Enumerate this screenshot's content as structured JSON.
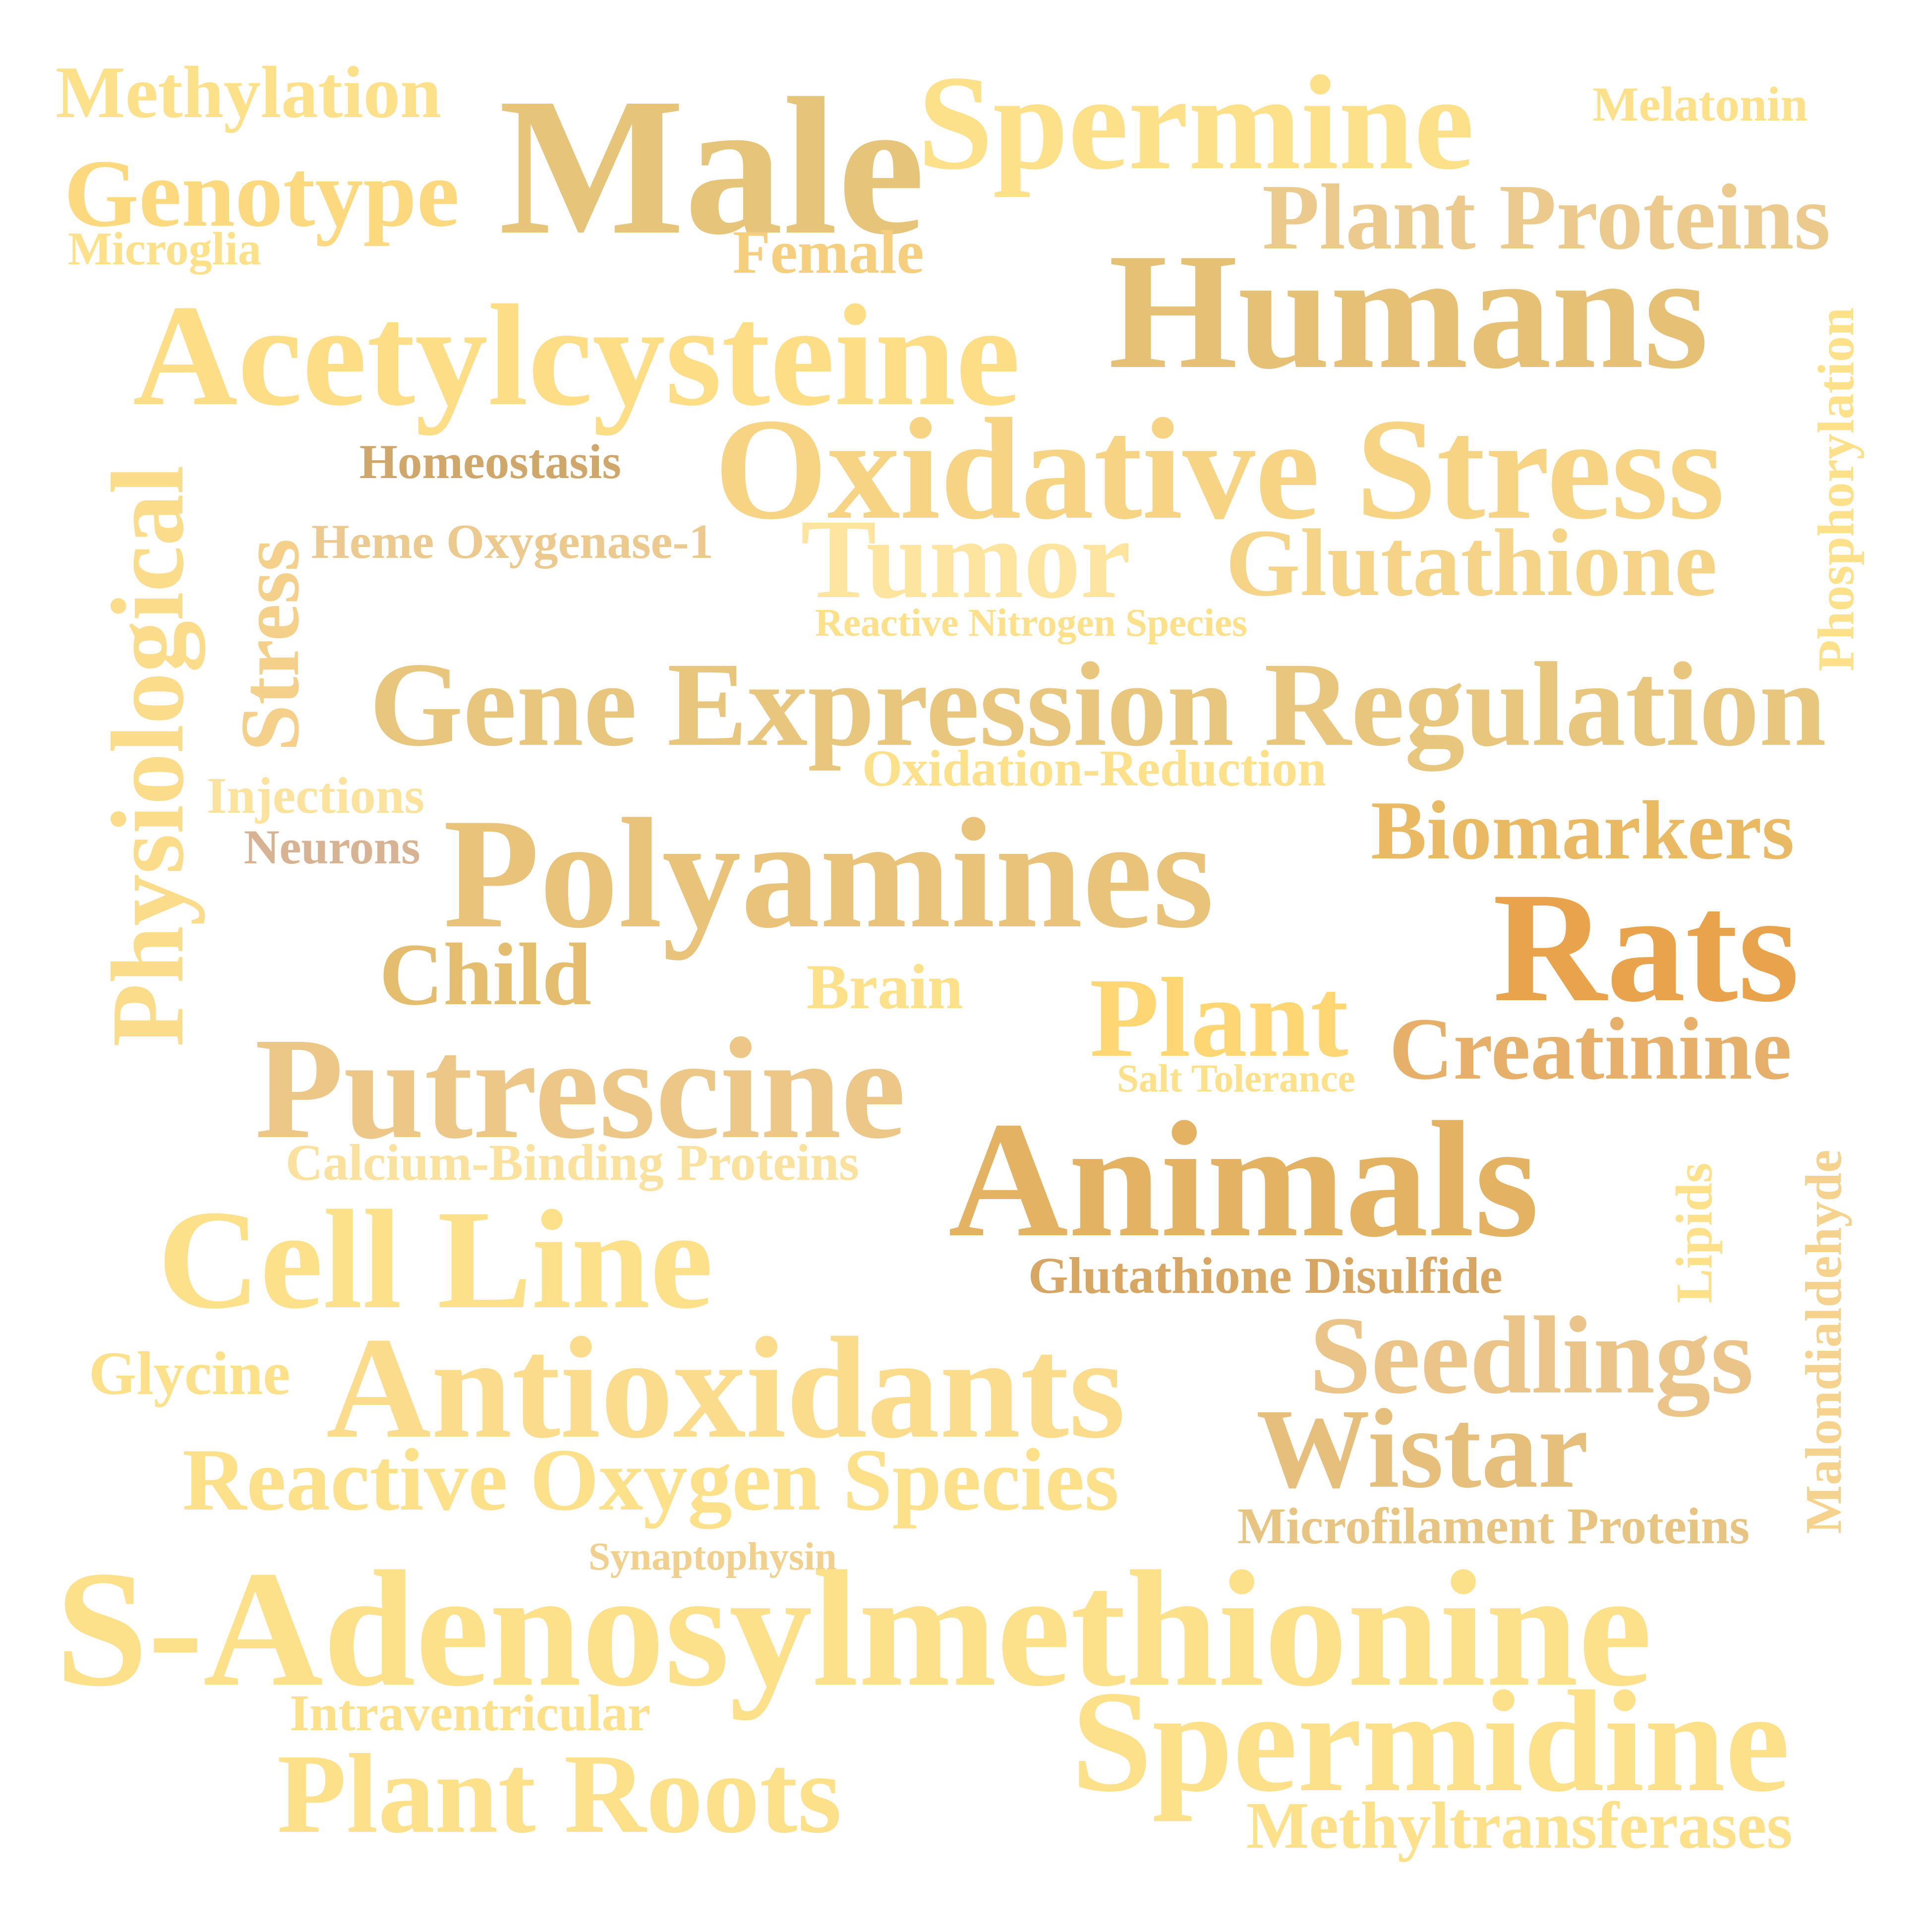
{
  "words": [
    {
      "id": "methylation",
      "text": "Methylation",
      "color": "#fde08a"
    },
    {
      "id": "male",
      "text": "Male",
      "color": "#e6c57a"
    },
    {
      "id": "spermine",
      "text": "Spermine",
      "color": "#fde08a"
    },
    {
      "id": "melatonin",
      "text": "Melatonin",
      "color": "#fde08a"
    },
    {
      "id": "genotype",
      "text": "Genotype",
      "color": "#fcd97f"
    },
    {
      "id": "microglia",
      "text": "Microglia",
      "color": "#fde08a"
    },
    {
      "id": "female",
      "text": "Female",
      "color": "#f5cf7e"
    },
    {
      "id": "plant-proteins",
      "text": "Plant Proteins",
      "color": "#ecc98d"
    },
    {
      "id": "humans",
      "text": "Humans",
      "color": "#e6c074"
    },
    {
      "id": "acetylcysteine",
      "text": "Acetylcysteine",
      "color": "#fddd86"
    },
    {
      "id": "phosphorylation",
      "text": "Phosphorylation",
      "color": "#fde08a"
    },
    {
      "id": "homeostasis",
      "text": "Homeostasis",
      "color": "#cfa76a"
    },
    {
      "id": "oxidative-stress",
      "text": "Oxidative Stress",
      "color": "#f6d484"
    },
    {
      "id": "physiological",
      "text": "Physiological",
      "color": "#fbdc8a"
    },
    {
      "id": "stress",
      "text": "Stress",
      "color": "#f4d08a"
    },
    {
      "id": "heme-oxygenase-1",
      "text": "Heme Oxygenase-1",
      "color": "#ebc98f"
    },
    {
      "id": "tumor",
      "text": "Tumor",
      "color": "#fde5a0"
    },
    {
      "id": "glutathione",
      "text": "Glutathione",
      "color": "#f5d387"
    },
    {
      "id": "reactive-nitrogen-species",
      "text": "Reactive Nitrogen Species",
      "color": "#fde08a"
    },
    {
      "id": "gene-expression-regulation",
      "text": "Gene Expression Regulation",
      "color": "#e9c67e"
    },
    {
      "id": "oxidation-reduction",
      "text": "Oxidation-Reduction",
      "color": "#fde08a"
    },
    {
      "id": "injections",
      "text": "Injections",
      "color": "#fbe39d"
    },
    {
      "id": "neurons",
      "text": "Neurons",
      "color": "#d7b394"
    },
    {
      "id": "polyamines",
      "text": "Polyamines",
      "color": "#e9c37a"
    },
    {
      "id": "biomarkers",
      "text": "Biomarkers",
      "color": "#eab964"
    },
    {
      "id": "rats",
      "text": "Rats",
      "color": "#e8a34c"
    },
    {
      "id": "child",
      "text": "Child",
      "color": "#e5bd6e"
    },
    {
      "id": "brain",
      "text": "Brain",
      "color": "#fde08a"
    },
    {
      "id": "plant",
      "text": "Plant",
      "color": "#fed774"
    },
    {
      "id": "creatinine",
      "text": "Creatinine",
      "color": "#e7b06a"
    },
    {
      "id": "putrescine",
      "text": "Putrescine",
      "color": "#ecc788"
    },
    {
      "id": "salt-tolerance",
      "text": "Salt Tolerance",
      "color": "#fde08a"
    },
    {
      "id": "calcium-binding-proteins",
      "text": "Calcium-Binding Proteins",
      "color": "#fae29e"
    },
    {
      "id": "animals",
      "text": "Animals",
      "color": "#e3b262"
    },
    {
      "id": "malondialdehyde",
      "text": "Malondialdehyde",
      "color": "#f5d28e"
    },
    {
      "id": "lipids",
      "text": "Lipids",
      "color": "#fde08a"
    },
    {
      "id": "cell-line",
      "text": "Cell Line",
      "color": "#fde08a"
    },
    {
      "id": "glutathione-disulfide",
      "text": "Glutathione Disulfide",
      "color": "#d7a663"
    },
    {
      "id": "glycine",
      "text": "Glycine",
      "color": "#fde08a"
    },
    {
      "id": "antioxidants",
      "text": "Antioxidants",
      "color": "#fbdc8c"
    },
    {
      "id": "seedlings",
      "text": "Seedlings",
      "color": "#ebc48a"
    },
    {
      "id": "wistar",
      "text": "Wistar",
      "color": "#e7bf7c"
    },
    {
      "id": "reactive-oxygen-species",
      "text": "Reactive Oxygen Species",
      "color": "#fde08a"
    },
    {
      "id": "microfilament-proteins",
      "text": "Microfilament Proteins",
      "color": "#e7c482"
    },
    {
      "id": "synaptophysin",
      "text": "Synaptophysin",
      "color": "#f1d08e"
    },
    {
      "id": "s-adenosylmethionine",
      "text": "S-Adenosylmethionine",
      "color": "#fde08a"
    },
    {
      "id": "intraventricular",
      "text": "Intraventricular",
      "color": "#fde08a"
    },
    {
      "id": "spermidine",
      "text": "Spermidine",
      "color": "#fde08a"
    },
    {
      "id": "plant-roots",
      "text": "Plant Roots",
      "color": "#fde08a"
    },
    {
      "id": "methyltransferases",
      "text": "Methyltransferases",
      "color": "#fde08a"
    }
  ]
}
